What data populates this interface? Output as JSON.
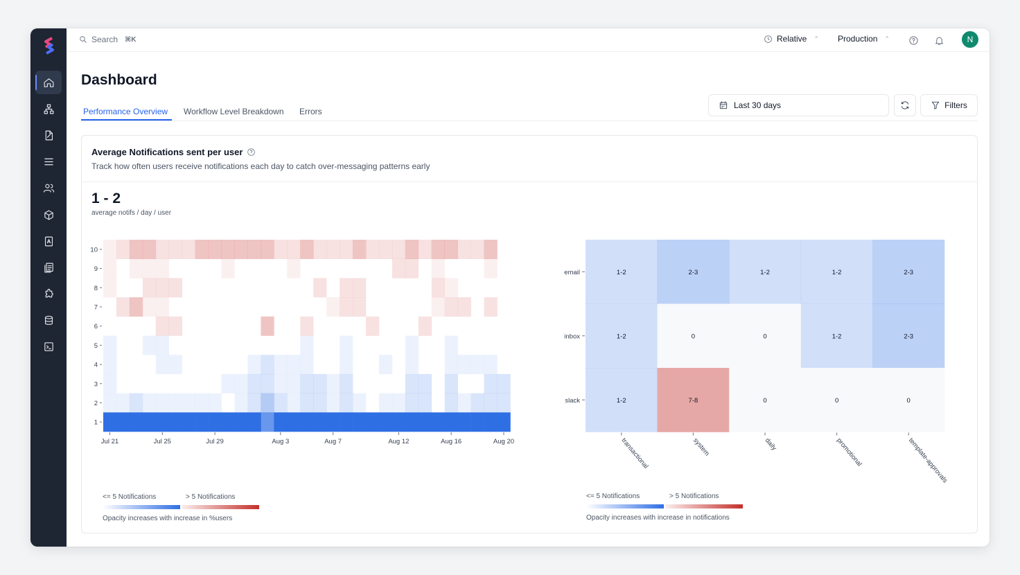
{
  "topbar": {
    "search_label": "Search",
    "search_shortcut": "⌘K",
    "time_mode": "Relative",
    "environment": "Production",
    "avatar_initial": "N"
  },
  "sidebar": {
    "items": [
      {
        "icon": "home-icon",
        "active": true
      },
      {
        "icon": "workflow-icon"
      },
      {
        "icon": "template-icon"
      },
      {
        "icon": "list-icon"
      },
      {
        "icon": "users-icon"
      },
      {
        "icon": "box-icon"
      },
      {
        "icon": "contact-book-icon"
      },
      {
        "icon": "reports-icon"
      },
      {
        "icon": "integrations-icon"
      },
      {
        "icon": "database-icon"
      },
      {
        "icon": "terminal-icon"
      }
    ]
  },
  "page": {
    "title": "Dashboard",
    "tabs": [
      "Performance Overview",
      "Workflow Level Breakdown",
      "Errors"
    ],
    "date_range": "Last 30 days",
    "filters_label": "Filters"
  },
  "card": {
    "title": "Average Notifications sent per user",
    "subtitle": "Track how often users receive notifications each day to catch over-messaging patterns early",
    "metric": "1 - 2",
    "metric_caption": "average notifs / day / user"
  },
  "colors": {
    "blue": "#2f6fe4",
    "red": "#c4302b",
    "accent": "#2563eb"
  },
  "chart_data": [
    {
      "type": "heatmap",
      "title": "",
      "x_tick_labels": [
        "Jul 21",
        "Jul 25",
        "Jul 29",
        "Aug 3",
        "Aug 7",
        "Aug 12",
        "Aug 16",
        "Aug 20"
      ],
      "x_tick_indices": [
        0,
        4,
        8,
        13,
        17,
        22,
        26,
        30
      ],
      "columns": 31,
      "y_tick_labels": [
        "1",
        "2",
        "3",
        "4",
        "5",
        "6",
        "7",
        "8",
        "9",
        "10"
      ],
      "encoding": "values 1..10 = blue (<= 5 Notifications), -1..-10 = red (> 5 Notifications); magnitude = opacity",
      "rows": [
        {
          "y": "10",
          "values": [
            -1,
            -2,
            -4,
            -4,
            -2,
            -2,
            -2,
            -4,
            -4,
            -4,
            -4,
            -4,
            -4,
            -2,
            -2,
            -4,
            -2,
            -2,
            -2,
            -4,
            -2,
            -2,
            -2,
            -4,
            -2,
            -4,
            -4,
            -2,
            -2,
            -4,
            0
          ]
        },
        {
          "y": "9",
          "values": [
            -1,
            0,
            -1,
            -1,
            -1,
            0,
            0,
            0,
            0,
            -1,
            0,
            0,
            0,
            0,
            -1,
            0,
            0,
            0,
            0,
            0,
            0,
            0,
            -2,
            -2,
            0,
            -1,
            0,
            0,
            0,
            -1,
            0
          ]
        },
        {
          "y": "8",
          "values": [
            -1,
            0,
            0,
            -2,
            -2,
            -2,
            0,
            0,
            0,
            0,
            0,
            0,
            0,
            0,
            0,
            0,
            -2,
            0,
            -2,
            -2,
            0,
            0,
            0,
            0,
            0,
            -2,
            -1,
            0,
            0,
            0,
            0
          ]
        },
        {
          "y": "7",
          "values": [
            0,
            -2,
            -4,
            -1,
            -1,
            0,
            0,
            0,
            0,
            0,
            0,
            0,
            0,
            0,
            0,
            0,
            0,
            -1,
            -2,
            -2,
            0,
            0,
            0,
            0,
            0,
            -1,
            -2,
            -2,
            0,
            -2,
            0
          ]
        },
        {
          "y": "6",
          "values": [
            0,
            0,
            0,
            0,
            -2,
            -2,
            0,
            0,
            0,
            0,
            0,
            0,
            -4,
            0,
            0,
            -2,
            0,
            0,
            0,
            0,
            -2,
            0,
            0,
            0,
            -2,
            0,
            0,
            0,
            0,
            0,
            0
          ]
        },
        {
          "y": "5",
          "values": [
            1,
            0,
            0,
            1,
            1,
            0,
            0,
            0,
            0,
            0,
            0,
            0,
            0,
            0,
            0,
            1,
            0,
            0,
            1,
            0,
            0,
            0,
            0,
            1,
            0,
            0,
            1,
            0,
            0,
            0,
            0
          ]
        },
        {
          "y": "4",
          "values": [
            1,
            0,
            0,
            0,
            1,
            1,
            0,
            0,
            0,
            0,
            0,
            1,
            2,
            1,
            1,
            1,
            0,
            0,
            1,
            0,
            0,
            1,
            0,
            1,
            0,
            0,
            1,
            1,
            1,
            1,
            0
          ]
        },
        {
          "y": "3",
          "values": [
            1,
            0,
            0,
            0,
            0,
            0,
            0,
            0,
            0,
            1,
            1,
            2,
            2,
            1,
            1,
            2,
            2,
            1,
            2,
            0,
            0,
            0,
            0,
            2,
            2,
            0,
            2,
            0,
            0,
            2,
            2
          ]
        },
        {
          "y": "2",
          "values": [
            1,
            1,
            2,
            1,
            1,
            1,
            1,
            1,
            1,
            0,
            1,
            2,
            4,
            2,
            1,
            2,
            2,
            1,
            2,
            1,
            0,
            1,
            1,
            2,
            2,
            0,
            2,
            1,
            2,
            2,
            2
          ]
        },
        {
          "y": "1",
          "values": [
            10,
            10,
            10,
            10,
            10,
            10,
            10,
            10,
            10,
            10,
            10,
            10,
            8,
            10,
            10,
            10,
            10,
            10,
            10,
            10,
            10,
            10,
            10,
            10,
            10,
            10,
            10,
            10,
            10,
            10,
            10
          ]
        }
      ],
      "legend": {
        "low_label": "<= 5 Notifications",
        "high_label": "> 5 Notifications",
        "note": "Opacity increases with increase in %users"
      }
    },
    {
      "type": "heatmap",
      "title": "",
      "x_categories": [
        "transactional",
        "system",
        "daily",
        "promotional",
        "template-approvals"
      ],
      "y_categories": [
        "email",
        "inbox",
        "slack"
      ],
      "cells": [
        [
          {
            "label": "1-2",
            "level": 2,
            "color": "blue"
          },
          {
            "label": "2-3",
            "level": 4,
            "color": "blue"
          },
          {
            "label": "1-2",
            "level": 2,
            "color": "blue"
          },
          {
            "label": "1-2",
            "level": 2,
            "color": "blue"
          },
          {
            "label": "2-3",
            "level": 4,
            "color": "blue"
          }
        ],
        [
          {
            "label": "1-2",
            "level": 2,
            "color": "blue"
          },
          {
            "label": "0",
            "level": 0,
            "color": "none"
          },
          {
            "label": "0",
            "level": 0,
            "color": "none"
          },
          {
            "label": "1-2",
            "level": 2,
            "color": "blue"
          },
          {
            "label": "2-3",
            "level": 4,
            "color": "blue"
          }
        ],
        [
          {
            "label": "1-2",
            "level": 2,
            "color": "blue"
          },
          {
            "label": "7-8",
            "level": 5,
            "color": "red"
          },
          {
            "label": "0",
            "level": 0,
            "color": "none"
          },
          {
            "label": "0",
            "level": 0,
            "color": "none"
          },
          {
            "label": "0",
            "level": 0,
            "color": "none"
          }
        ]
      ],
      "legend": {
        "low_label": "<= 5 Notifications",
        "high_label": "> 5 Notifications",
        "note": "Opacity increases with increase in notifications"
      }
    }
  ]
}
